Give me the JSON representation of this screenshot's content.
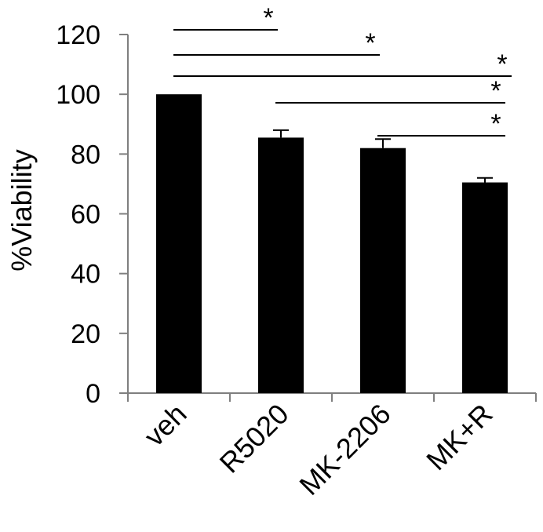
{
  "chart_data": {
    "type": "bar",
    "title": "",
    "xlabel": "",
    "ylabel": "%Viability",
    "ylim": [
      0,
      120
    ],
    "yticks": [
      0,
      20,
      40,
      60,
      80,
      100,
      120
    ],
    "categories": [
      "veh",
      "R5020",
      "MK-2206",
      "MK+R"
    ],
    "values": [
      100,
      85.5,
      82,
      70.5
    ],
    "errors": [
      0,
      2.5,
      3,
      1.5
    ],
    "grid": false,
    "bar_color": "#000000",
    "significance": [
      {
        "from": "veh",
        "to": "R5020",
        "label": "*"
      },
      {
        "from": "veh",
        "to": "MK-2206",
        "label": "*"
      },
      {
        "from": "veh",
        "to": "MK+R",
        "label": "*"
      },
      {
        "from": "R5020",
        "to": "MK+R",
        "label": "*"
      },
      {
        "from": "MK-2206",
        "to": "MK+R",
        "label": "*"
      }
    ]
  }
}
